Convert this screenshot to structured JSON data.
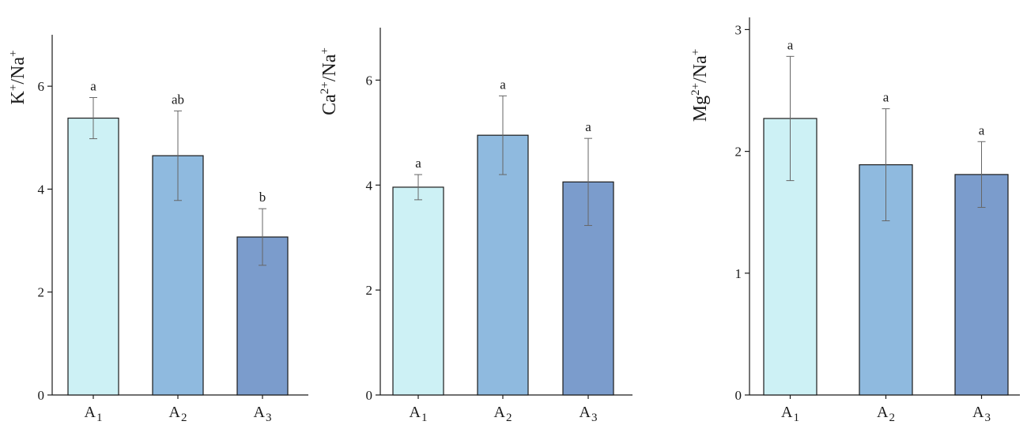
{
  "colors": {
    "A1": "#cdf1f5",
    "A2": "#8fbadf",
    "A3": "#7b9ccc",
    "axis": "#1a1a1a",
    "error_bar": "#666666"
  },
  "chart_data": [
    {
      "type": "bar",
      "ylabel": "K",
      "ylabel_sup": "+",
      "ylabel_mid": "/Na",
      "ylabel_sup2": "+",
      "ylim": [
        0,
        7
      ],
      "yticks": [
        0,
        2,
        4,
        6
      ],
      "categories": [
        {
          "base": "A",
          "sub": "1"
        },
        {
          "base": "A",
          "sub": "2"
        },
        {
          "base": "A",
          "sub": "3"
        }
      ],
      "values": [
        5.38,
        4.65,
        3.07
      ],
      "errors": [
        0.4,
        0.87,
        0.55
      ],
      "letters": [
        "a",
        "ab",
        "b"
      ]
    },
    {
      "type": "bar",
      "ylabel": "Ca",
      "ylabel_sup": "2+",
      "ylabel_mid": "/Na",
      "ylabel_sup2": "+",
      "ylim": [
        0,
        7
      ],
      "yticks": [
        0,
        2,
        4,
        6
      ],
      "categories": [
        {
          "base": "A",
          "sub": "1"
        },
        {
          "base": "A",
          "sub": "2"
        },
        {
          "base": "A",
          "sub": "3"
        }
      ],
      "values": [
        3.96,
        4.95,
        4.06
      ],
      "errors": [
        0.24,
        0.75,
        0.83
      ],
      "letters": [
        "a",
        "a",
        "a"
      ]
    },
    {
      "type": "bar",
      "ylabel": "Mg",
      "ylabel_sup": "2+",
      "ylabel_mid": "/Na",
      "ylabel_sup2": "+",
      "ylim": [
        0,
        3.1
      ],
      "yticks": [
        0,
        1,
        2,
        3
      ],
      "categories": [
        {
          "base": "A",
          "sub": "1"
        },
        {
          "base": "A",
          "sub": "2"
        },
        {
          "base": "A",
          "sub": "3"
        }
      ],
      "values": [
        2.27,
        1.89,
        1.81
      ],
      "errors": [
        0.51,
        0.46,
        0.27
      ],
      "letters": [
        "a",
        "a",
        "a"
      ]
    }
  ]
}
